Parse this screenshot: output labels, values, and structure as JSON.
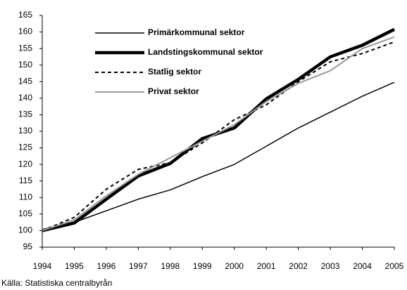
{
  "chart_data": {
    "type": "line",
    "x": [
      1994,
      1995,
      1996,
      1997,
      1998,
      1999,
      2000,
      2001,
      2002,
      2003,
      2004,
      2005
    ],
    "xlim": [
      1994,
      2005
    ],
    "xticks": [
      1994,
      1995,
      1996,
      1997,
      1998,
      1999,
      2000,
      2001,
      2002,
      2003,
      2004,
      2005
    ],
    "ylim": [
      95,
      165
    ],
    "yticks": [
      95,
      100,
      105,
      110,
      115,
      120,
      125,
      130,
      135,
      140,
      145,
      150,
      155,
      160,
      165
    ],
    "series": [
      {
        "name": "Primärkommunal sektor",
        "color": "#000000",
        "values": [
          100,
          102.5,
          106,
          109.5,
          112.3,
          116.3,
          120,
          125.5,
          131,
          135.8,
          140.6,
          144.8
        ]
      },
      {
        "name": "Landstingskommunal sektor",
        "color": "#000000",
        "values": [
          100,
          102.3,
          109.5,
          116.5,
          120.3,
          127.8,
          131,
          139.8,
          145.7,
          152.5,
          156,
          160.8
        ]
      },
      {
        "name": "Statlig sektor",
        "color": "#000000",
        "values": [
          100,
          104,
          112.5,
          118.5,
          120.5,
          126.5,
          133.5,
          138,
          145,
          151,
          153.5,
          157
        ]
      },
      {
        "name": "Privat sektor",
        "color": "#999999",
        "values": [
          100,
          103.2,
          110.5,
          117,
          122,
          127,
          132,
          139,
          144.5,
          148.3,
          155,
          158.5
        ]
      }
    ],
    "source": "Källa: Statistiska centralbyrån"
  }
}
